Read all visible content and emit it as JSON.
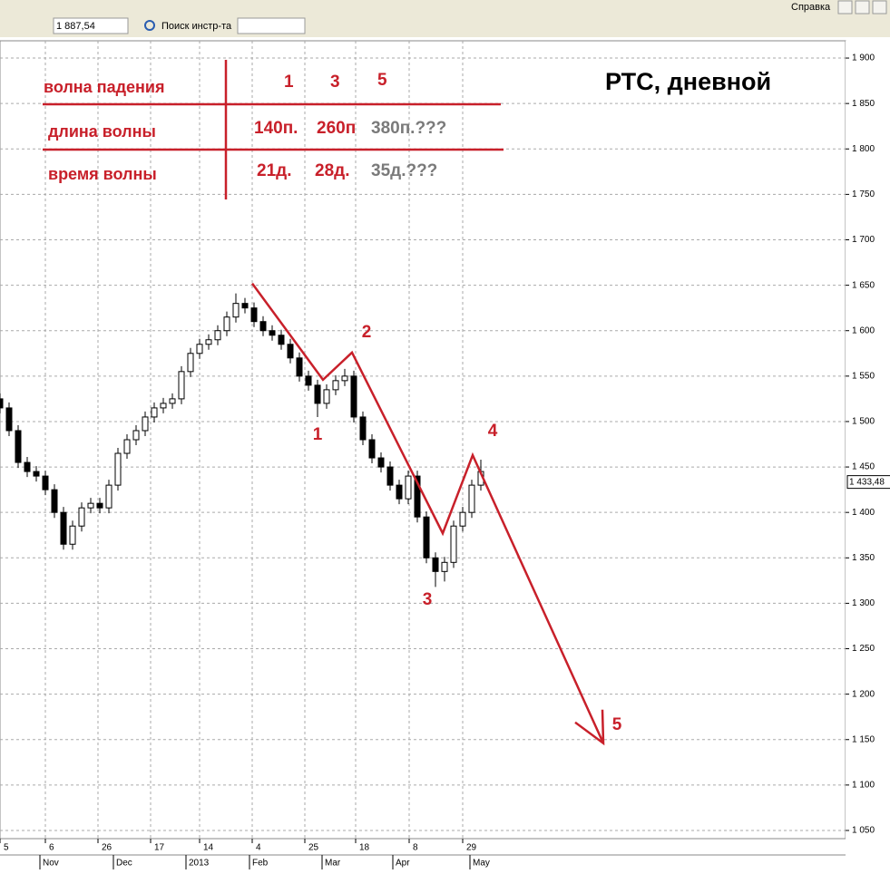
{
  "toolbar": {
    "price": "1 887,54",
    "search": "Поиск инстр-та",
    "menu": "Справка"
  },
  "chart_data": {
    "type": "candlestick",
    "title": "РТС, дневной",
    "x": [
      0,
      2.5,
      5,
      7.5,
      10,
      12.5,
      15,
      17.5,
      20,
      22.5,
      25,
      27.5,
      30,
      32.5,
      35,
      37.5,
      40,
      42.5,
      45,
      47.5,
      50,
      52.5,
      55,
      57.5,
      60,
      62.5,
      65,
      67.5,
      70,
      72.5,
      75,
      77.5,
      80,
      82.5,
      85,
      87.5,
      90,
      92.5,
      95,
      97.5,
      100,
      102.5,
      105,
      107.5,
      110,
      112.5,
      115,
      117.5,
      120,
      122.5,
      125,
      127.5,
      130,
      132.5
    ],
    "ohlc": [
      [
        1525,
        1531,
        1509,
        1515
      ],
      [
        1515,
        1521,
        1484,
        1490
      ],
      [
        1490,
        1496,
        1449,
        1455
      ],
      [
        1455,
        1461,
        1439,
        1445
      ],
      [
        1445,
        1451,
        1434,
        1440
      ],
      [
        1440,
        1446,
        1419,
        1425
      ],
      [
        1425,
        1431,
        1394,
        1400
      ],
      [
        1400,
        1406,
        1359,
        1365
      ],
      [
        1365,
        1391,
        1359,
        1385
      ],
      [
        1385,
        1411,
        1379,
        1405
      ],
      [
        1405,
        1416,
        1399,
        1410
      ],
      [
        1410,
        1416,
        1399,
        1405
      ],
      [
        1405,
        1436,
        1399,
        1430
      ],
      [
        1430,
        1471,
        1424,
        1465
      ],
      [
        1465,
        1486,
        1459,
        1480
      ],
      [
        1480,
        1496,
        1474,
        1490
      ],
      [
        1490,
        1511,
        1484,
        1505
      ],
      [
        1505,
        1521,
        1499,
        1515
      ],
      [
        1515,
        1526,
        1509,
        1520
      ],
      [
        1520,
        1531,
        1514,
        1525
      ],
      [
        1525,
        1561,
        1519,
        1555
      ],
      [
        1555,
        1581,
        1549,
        1575
      ],
      [
        1575,
        1591,
        1569,
        1585
      ],
      [
        1585,
        1596,
        1579,
        1590
      ],
      [
        1590,
        1606,
        1584,
        1600
      ],
      [
        1600,
        1621,
        1594,
        1615
      ],
      [
        1615,
        1641,
        1609,
        1630
      ],
      [
        1630,
        1636,
        1619,
        1625
      ],
      [
        1625,
        1631,
        1604,
        1610
      ],
      [
        1610,
        1616,
        1594,
        1600
      ],
      [
        1600,
        1606,
        1589,
        1595
      ],
      [
        1595,
        1601,
        1579,
        1585
      ],
      [
        1585,
        1591,
        1564,
        1570
      ],
      [
        1570,
        1576,
        1544,
        1550
      ],
      [
        1550,
        1556,
        1534,
        1540
      ],
      [
        1540,
        1546,
        1505,
        1520
      ],
      [
        1520,
        1541,
        1514,
        1535
      ],
      [
        1535,
        1551,
        1529,
        1545
      ],
      [
        1545,
        1558,
        1539,
        1550
      ],
      [
        1550,
        1556,
        1499,
        1505
      ],
      [
        1505,
        1511,
        1474,
        1480
      ],
      [
        1480,
        1486,
        1454,
        1460
      ],
      [
        1460,
        1466,
        1444,
        1450
      ],
      [
        1450,
        1456,
        1424,
        1430
      ],
      [
        1430,
        1436,
        1409,
        1415
      ],
      [
        1415,
        1446,
        1409,
        1440
      ],
      [
        1440,
        1446,
        1389,
        1395
      ],
      [
        1395,
        1401,
        1344,
        1350
      ],
      [
        1350,
        1356,
        1318,
        1335
      ],
      [
        1335,
        1351,
        1324,
        1345
      ],
      [
        1345,
        1391,
        1339,
        1385
      ],
      [
        1385,
        1406,
        1379,
        1400
      ],
      [
        1400,
        1436,
        1394,
        1430
      ],
      [
        1430,
        1458,
        1424,
        1445
      ]
    ],
    "up_color": "#ffffff",
    "down_color": "#000000",
    "xlim": [
      0,
      233
    ],
    "ylim": [
      1041,
      1919
    ],
    "xticks": [
      {
        "value": 0,
        "label": "5"
      },
      {
        "value": 12.5,
        "label": "6"
      },
      {
        "value": 27,
        "label": "26"
      },
      {
        "value": 41.5,
        "label": "17"
      },
      {
        "value": 55,
        "label": "14"
      },
      {
        "value": 69.5,
        "label": "4"
      },
      {
        "value": 84,
        "label": "25"
      },
      {
        "value": 98,
        "label": "18"
      },
      {
        "value": 112.75,
        "label": "8"
      },
      {
        "value": 127.5,
        "label": "29"
      }
    ],
    "month_ticks": [
      {
        "value": 11,
        "label": "Nov"
      },
      {
        "value": 31.25,
        "label": "Dec"
      },
      {
        "value": 51.25,
        "label": "2013"
      },
      {
        "value": 68.75,
        "label": "Feb"
      },
      {
        "value": 88.75,
        "label": "Mar"
      },
      {
        "value": 108.25,
        "label": "Apr"
      },
      {
        "value": 129.5,
        "label": "May"
      }
    ],
    "yticks": [
      {
        "value": 1050,
        "label": "1 050"
      },
      {
        "value": 1100,
        "label": "1 100"
      },
      {
        "value": 1150,
        "label": "1 150"
      },
      {
        "value": 1200,
        "label": "1 200"
      },
      {
        "value": 1250,
        "label": "1 250"
      },
      {
        "value": 1300,
        "label": "1 300"
      },
      {
        "value": 1350,
        "label": "1 350"
      },
      {
        "value": 1400,
        "label": "1 400"
      },
      {
        "value": 1450,
        "label": "1 450"
      },
      {
        "value": 1500,
        "label": "1 500"
      },
      {
        "value": 1550,
        "label": "1 550"
      },
      {
        "value": 1600,
        "label": "1 600"
      },
      {
        "value": 1650,
        "label": "1 650"
      },
      {
        "value": 1700,
        "label": "1 700"
      },
      {
        "value": 1750,
        "label": "1 750"
      },
      {
        "value": 1800,
        "label": "1 800"
      },
      {
        "value": 1850,
        "label": "1 850"
      },
      {
        "value": 1900,
        "label": "1 900"
      }
    ],
    "grid": true,
    "last_price": {
      "value": 1433.48,
      "label": "1 433,48"
    },
    "wave_line": {
      "color": "#c8202a",
      "x": [
        69.5,
        89,
        97,
        122,
        130.25,
        166.25
      ],
      "y": [
        1652,
        1546,
        1576,
        1377,
        1463,
        1146
      ]
    },
    "wave_labels": [
      "1",
      "2",
      "3",
      "4",
      "5"
    ],
    "table": {
      "color": "#c8202a",
      "forecast_color": "#7a7a7a",
      "header": [
        "волна падения",
        "1",
        "3",
        "5"
      ],
      "rows": [
        [
          "длина волны",
          "140п.",
          "260п",
          "380п.???"
        ],
        [
          "время волны",
          "21д.",
          "28д.",
          "35д.???"
        ]
      ]
    }
  }
}
